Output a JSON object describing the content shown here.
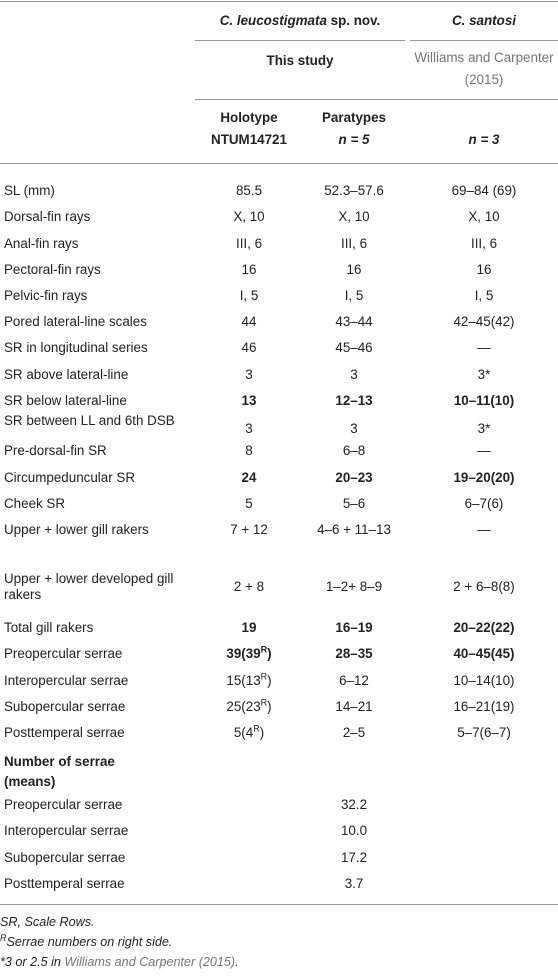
{
  "header": {
    "species1": "C. leucostigmata",
    "species1_suffix": " sp. nov.",
    "species2": "C. santosi",
    "study": "This study",
    "ref": "Williams and Carpenter (2015)",
    "col_holotype": "Holotype",
    "col_holotype_id": "NTUM14721",
    "col_paratypes": "Paratypes",
    "col_paratypes_n": "n = 5",
    "col_santosi_n": "n = 3"
  },
  "rows": [
    {
      "label": "SL (mm)",
      "holo": "85.5",
      "para": "52.3–57.6",
      "san": "69–84 (69)"
    },
    {
      "label": "Dorsal-fin rays",
      "holo": "X, 10",
      "para": "X, 10",
      "san": "X, 10"
    },
    {
      "label": "Anal-fin rays",
      "holo": "III, 6",
      "para": "III, 6",
      "san": "III, 6"
    },
    {
      "label": "Pectoral-fin rays",
      "holo": "16",
      "para": "16",
      "san": "16"
    },
    {
      "label": "Pelvic-fin rays",
      "holo": "I, 5",
      "para": "I, 5",
      "san": "I, 5"
    },
    {
      "label": "Pored lateral-line scales",
      "holo": "44",
      "para": "43–44",
      "san": "42–45(42)"
    },
    {
      "label": "SR in longitudinal series",
      "holo": "46",
      "para": "45–46",
      "san": "—"
    },
    {
      "label": "SR above lateral-line",
      "holo": "3",
      "para": "3",
      "san": "3*"
    },
    {
      "label": "SR below lateral-line",
      "holo": "13",
      "para": "12–13",
      "san": "10–11(10)",
      "bold": true
    },
    {
      "label": "SR between LL and 6th DSB",
      "holo": "3",
      "para": "3",
      "san": "3*",
      "tall": true
    },
    {
      "label": "Pre-dorsal-fin SR",
      "holo": "8",
      "para": "6–8",
      "san": "—"
    },
    {
      "label": "Circumpeduncular SR",
      "holo": "24",
      "para": "20–23",
      "san": "19–20(20)",
      "bold": true
    },
    {
      "label": "Cheek SR",
      "holo": "5",
      "para": "5–6",
      "san": "6–7(6)"
    },
    {
      "label": "Upper + lower gill rakers",
      "holo": "7 + 12",
      "para": "4–6 + 11–13",
      "san": "—"
    },
    {
      "label": "Upper + lower developed gill rakers",
      "holo": "2 + 8",
      "para": "1–2+ 8–9",
      "san": "2 + 6–8(8)",
      "tall": true
    },
    {
      "label": "Total gill rakers",
      "holo": "19",
      "para": "16–19",
      "san": "20–22(22)",
      "bold": true
    },
    {
      "label": "Preopercular serrae",
      "holo": "39(39",
      "holo_sup": "R",
      "holo_end": ")",
      "para": "28–35",
      "san": "40–45(45)",
      "bold": true
    },
    {
      "label": "Interopercular serrae",
      "holo": "15(13",
      "holo_sup": "R",
      "holo_end": ")",
      "para": "6–12",
      "san": "10–14(10)"
    },
    {
      "label": "Subopercular serrae",
      "holo": "25(23",
      "holo_sup": "R",
      "holo_end": ")",
      "para": "14–21",
      "san": "16–21(19)"
    },
    {
      "label": "Posttemperal serrae",
      "holo": "5(4",
      "holo_sup": "R",
      "holo_end": ")",
      "para": "2–5",
      "san": "5–7(6–7)"
    }
  ],
  "means_section": {
    "title": "Number of serrae (means)",
    "rows": [
      {
        "label": "Preopercular serrae",
        "para": "32.2"
      },
      {
        "label": "Interopercular serrae",
        "para": "10.0"
      },
      {
        "label": "Subopercular serrae",
        "para": "17.2"
      },
      {
        "label": "Posttemperal serrae",
        "para": "3.7"
      }
    ]
  },
  "footnotes": {
    "abbr": "SR, Scale Rows.",
    "right_sup": "R",
    "right_text": "Serrae numbers on right side.",
    "star": "*3 or 2.5 in ",
    "star_ref": "Williams and Carpenter (2015)",
    "star_end": "."
  }
}
